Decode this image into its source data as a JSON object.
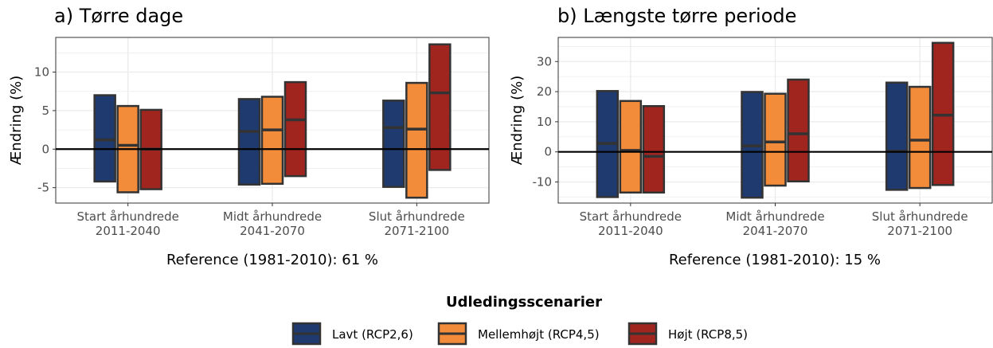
{
  "chart_data": [
    {
      "type": "bar",
      "title": "a) Tørre dage",
      "ylabel": "Ændring (%)",
      "xlabel": "Reference (1981-2010): 61 %",
      "ylim": [
        -7,
        14.5
      ],
      "yticks": [
        -5,
        0,
        5,
        10
      ],
      "ytick_labels": [
        "-5",
        "0",
        "5",
        "10"
      ],
      "categories": [
        {
          "line1": "Start århundrede",
          "line2": "2011-2040"
        },
        {
          "line1": "Midt århundrede",
          "line2": "2041-2070"
        },
        {
          "line1": "Slut århundrede",
          "line2": "2071-2100"
        }
      ],
      "series": [
        {
          "name": "Lavt (RCP2,6)",
          "color": "#1f3a6e",
          "low": [
            -4.2,
            -4.6,
            -4.9
          ],
          "high": [
            7.0,
            6.5,
            6.3
          ],
          "median": [
            1.2,
            2.3,
            2.8
          ]
        },
        {
          "name": "Mellemhøjt (RCP4,5)",
          "color": "#f28c3a",
          "low": [
            -5.6,
            -4.5,
            -6.3
          ],
          "high": [
            5.6,
            6.8,
            8.6
          ],
          "median": [
            0.5,
            2.5,
            2.6
          ]
        },
        {
          "name": "Højt (RCP8,5)",
          "color": "#a1251f",
          "low": [
            -5.2,
            -3.5,
            -2.7
          ],
          "high": [
            5.1,
            8.7,
            13.6
          ],
          "median": [
            0.0,
            3.8,
            7.3
          ]
        }
      ]
    },
    {
      "type": "bar",
      "title": "b) Længste tørre periode",
      "ylabel": "Ændring (%)",
      "xlabel": "Reference (1981-2010): 15 %",
      "ylim": [
        -17,
        38
      ],
      "yticks": [
        -10,
        0,
        10,
        20,
        30
      ],
      "ytick_labels": [
        "-10",
        "0",
        "10",
        "20",
        "30"
      ],
      "categories": [
        {
          "line1": "Start århundrede",
          "line2": "2011-2040"
        },
        {
          "line1": "Midt århundrede",
          "line2": "2041-2070"
        },
        {
          "line1": "Slut århundrede",
          "line2": "2071-2100"
        }
      ],
      "series": [
        {
          "name": "Lavt (RCP2,6)",
          "color": "#1f3a6e",
          "low": [
            -15.0,
            -15.2,
            -12.6
          ],
          "high": [
            20.2,
            19.9,
            23.0
          ],
          "median": [
            2.8,
            2.0,
            0.2
          ]
        },
        {
          "name": "Mellemhøjt (RCP4,5)",
          "color": "#f28c3a",
          "low": [
            -13.5,
            -11.2,
            -12.0
          ],
          "high": [
            16.9,
            19.3,
            21.6
          ],
          "median": [
            0.5,
            3.3,
            3.9
          ]
        },
        {
          "name": "Højt (RCP8,5)",
          "color": "#a1251f",
          "low": [
            -13.5,
            -9.8,
            -11.0
          ],
          "high": [
            15.2,
            24.0,
            36.2
          ],
          "median": [
            -1.5,
            6.0,
            12.2
          ]
        }
      ]
    }
  ],
  "legend": {
    "title": "Udledingsscenarier",
    "items": [
      {
        "label": "Lavt (RCP2,6)",
        "color": "#1f3a6e"
      },
      {
        "label": "Mellemhøjt (RCP4,5)",
        "color": "#f28c3a"
      },
      {
        "label": "Højt (RCP8,5)",
        "color": "#a1251f"
      }
    ]
  }
}
